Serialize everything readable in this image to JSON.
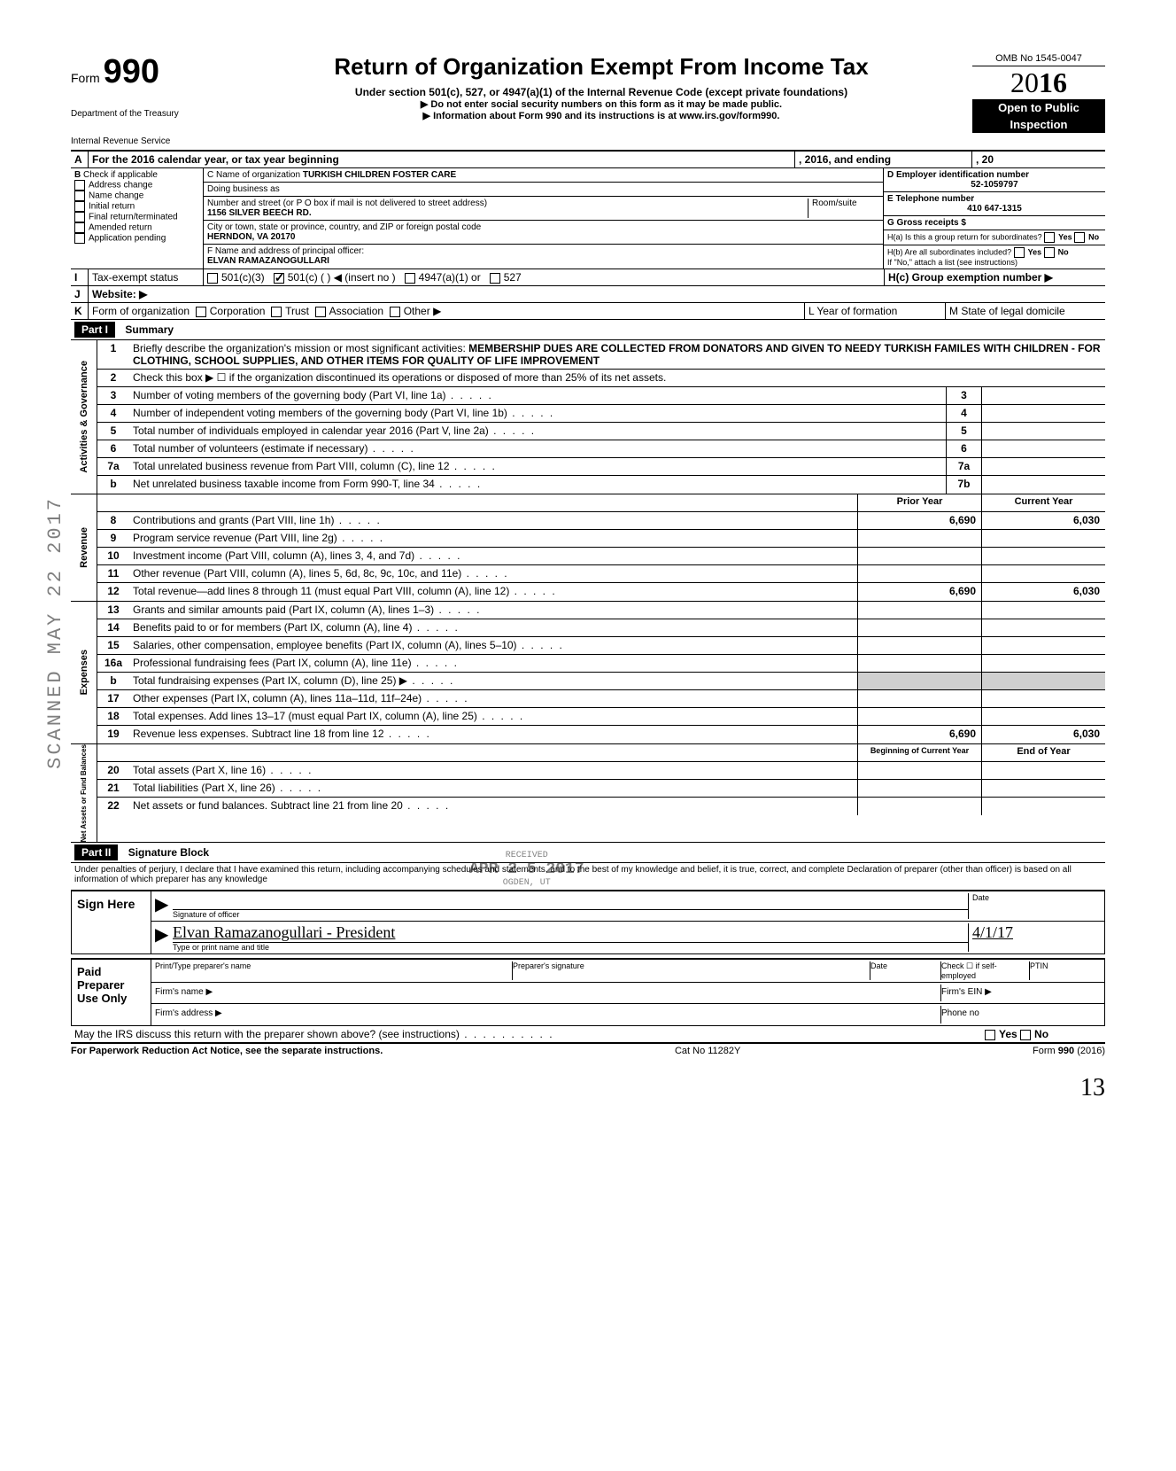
{
  "header": {
    "form_label": "Form",
    "form_number": "990",
    "title": "Return of Organization Exempt From Income Tax",
    "subtitle": "Under section 501(c), 527, or 4947(a)(1) of the Internal Revenue Code (except private foundations)",
    "note1": "▶ Do not enter social security numbers on this form as it may be made public.",
    "note2": "▶ Information about Form 990 and its instructions is at www.irs.gov/form990.",
    "omb": "OMB No 1545-0047",
    "year_prefix": "20",
    "year_suffix": "16",
    "open1": "Open to Public",
    "open2": "Inspection",
    "dept1": "Department of the Treasury",
    "dept2": "Internal Revenue Service"
  },
  "rowA": {
    "label_A": "A",
    "text": "For the 2016 calendar year, or tax year beginning",
    "text2": ", 2016, and ending",
    "text3": ", 20"
  },
  "rowB": {
    "label_B": "B",
    "check_if": "Check if applicable",
    "items": [
      "Address change",
      "Name change",
      "Initial return",
      "Final return/terminated",
      "Amended return",
      "Application pending"
    ]
  },
  "rowC": {
    "c_label": "C Name of organization",
    "c_value": "TURKISH CHILDREN FOSTER CARE",
    "dba_label": "Doing business as",
    "addr_label": "Number and street (or P O  box if mail is not delivered to street address)",
    "room_label": "Room/suite",
    "addr_value": "1156 SILVER BEECH RD.",
    "city_label": "City or town, state or province, country, and ZIP or foreign postal code",
    "city_value": "HERNDON, VA 20170",
    "f_label": "F Name and address of principal officer:",
    "f_value": "ELVAN RAMAZANOGULLARI"
  },
  "rowD": {
    "d_label": "D Employer identification number",
    "d_value": "52-1059797",
    "e_label": "E Telephone number",
    "e_value": "410 647-1315",
    "g_label": "G Gross receipts $",
    "ha_label": "H(a) Is this a group return for subordinates?",
    "hb_label": "H(b) Are all subordinates included?",
    "h_note": "If \"No,\" attach a list (see instructions)",
    "hc_label": "H(c) Group exemption number ▶",
    "yes": "Yes",
    "no": "No"
  },
  "rowI": {
    "label": "I",
    "tax_exempt": "Tax-exempt status",
    "opt1": "501(c)(3)",
    "opt2": "501(c) (",
    "opt2b": ") ◀ (insert no )",
    "opt3": "4947(a)(1) or",
    "opt4": "527"
  },
  "rowJ": {
    "label": "J",
    "text": "Website: ▶"
  },
  "rowK": {
    "label": "K",
    "form_org": "Form of organization",
    "opts": [
      "Corporation",
      "Trust",
      "Association",
      "Other ▶"
    ],
    "l_label": "L Year of formation",
    "m_label": "M State of legal domicile"
  },
  "part1": {
    "header": "Part I",
    "title": "Summary",
    "line1_num": "1",
    "line1_text": "Briefly describe the organization's mission or most significant activities:",
    "line1_value": "MEMBERSHIP DUES ARE COLLECTED FROM DONATORS AND GIVEN TO NEEDY TURKISH FAMILES WITH CHILDREN - FOR CLOTHING, SCHOOL SUPPLIES, AND OTHER ITEMS FOR QUALITY OF LIFE IMPROVEMENT",
    "line2": "Check this box ▶ ☐ if the organization discontinued its operations or disposed of more than 25% of its net assets.",
    "gov_label": "Activities & Governance",
    "gov_lines": [
      {
        "n": "3",
        "t": "Number of voting members of the governing body (Part VI, line 1a)",
        "box": "3"
      },
      {
        "n": "4",
        "t": "Number of independent voting members of the governing body (Part VI, line 1b)",
        "box": "4"
      },
      {
        "n": "5",
        "t": "Total number of individuals employed in calendar year 2016 (Part V, line 2a)",
        "box": "5"
      },
      {
        "n": "6",
        "t": "Total number of volunteers (estimate if necessary)",
        "box": "6"
      },
      {
        "n": "7a",
        "t": "Total unrelated business revenue from Part VIII, column (C), line 12",
        "box": "7a"
      },
      {
        "n": "b",
        "t": "Net unrelated business taxable income from Form 990-T, line 34",
        "box": "7b"
      }
    ],
    "prior_year": "Prior Year",
    "current_year": "Current Year",
    "rev_label": "Revenue",
    "rev_lines": [
      {
        "n": "8",
        "t": "Contributions and grants (Part VIII, line 1h)",
        "py": "6,690",
        "cy": "6,030"
      },
      {
        "n": "9",
        "t": "Program service revenue (Part VIII, line 2g)",
        "py": "",
        "cy": ""
      },
      {
        "n": "10",
        "t": "Investment income (Part VIII, column (A), lines 3, 4, and 7d)",
        "py": "",
        "cy": ""
      },
      {
        "n": "11",
        "t": "Other revenue (Part VIII, column (A), lines 5, 6d, 8c, 9c, 10c, and 11e)",
        "py": "",
        "cy": ""
      },
      {
        "n": "12",
        "t": "Total revenue—add lines 8 through 11 (must equal Part VIII, column (A), line 12)",
        "py": "6,690",
        "cy": "6,030"
      }
    ],
    "exp_label": "Expenses",
    "exp_lines": [
      {
        "n": "13",
        "t": "Grants and similar amounts paid (Part IX, column (A), lines 1–3)",
        "py": "",
        "cy": ""
      },
      {
        "n": "14",
        "t": "Benefits paid to or for members (Part IX, column (A), line 4)",
        "py": "",
        "cy": ""
      },
      {
        "n": "15",
        "t": "Salaries, other compensation, employee benefits (Part IX, column (A), lines 5–10)",
        "py": "",
        "cy": ""
      },
      {
        "n": "16a",
        "t": "Professional fundraising fees (Part IX, column (A),  line 11e)",
        "py": "",
        "cy": ""
      },
      {
        "n": "b",
        "t": "Total fundraising expenses (Part IX, column (D), line 25) ▶",
        "py": "shaded",
        "cy": "shaded"
      },
      {
        "n": "17",
        "t": "Other expenses (Part IX, column (A), lines 11a–11d, 11f–24e)",
        "py": "",
        "cy": ""
      },
      {
        "n": "18",
        "t": "Total expenses. Add lines 13–17 (must equal Part IX, column (A), line 25)",
        "py": "",
        "cy": ""
      },
      {
        "n": "19",
        "t": "Revenue less expenses. Subtract line 18 from line 12",
        "py": "6,690",
        "cy": "6,030"
      }
    ],
    "na_label": "Net Assets or Fund Balances",
    "boy": "Beginning of Current Year",
    "eoy": "End of Year",
    "na_lines": [
      {
        "n": "20",
        "t": "Total assets (Part X, line 16)",
        "py": "",
        "cy": ""
      },
      {
        "n": "21",
        "t": "Total liabilities (Part X, line 26)",
        "py": "",
        "cy": ""
      },
      {
        "n": "22",
        "t": "Net assets or fund balances. Subtract line 21 from line 20",
        "py": "",
        "cy": ""
      }
    ]
  },
  "part2": {
    "header": "Part II",
    "title": "Signature Block",
    "perjury": "Under penalties of perjury, I declare that I have examined this return, including accompanying schedules and statements, and to the best of my knowledge and belief, it is true, correct, and complete  Declaration of preparer (other than officer) is based on all information of which preparer has any knowledge",
    "sign_here": "Sign Here",
    "sig_label": "Signature of officer",
    "date_label": "Date",
    "name_value": "Elvan Ramazanogullari - President",
    "name_label": "Type or print name and title",
    "date_value": "4/1/17",
    "paid": "Paid Preparer Use Only",
    "prep_name": "Print/Type preparer's name",
    "prep_sig": "Preparer's signature",
    "check_if": "Check ☐ if self-employed",
    "ptin": "PTIN",
    "firm_name": "Firm's name    ▶",
    "firm_ein": "Firm's EIN ▶",
    "firm_addr": "Firm's address ▶",
    "phone": "Phone no",
    "discuss": "May the IRS discuss this return with the preparer shown above? (see instructions)"
  },
  "footer": {
    "left": "For Paperwork Reduction Act Notice, see the separate instructions.",
    "mid": "Cat No 11282Y",
    "right": "Form 990 (2016)"
  },
  "stamps": {
    "scanned": "SCANNED MAY 22 2017",
    "received": "RECEIVED",
    "recv_date": "APR 2 5 2017",
    "recv_place": "OGDEN, UT"
  },
  "page_num": "13"
}
